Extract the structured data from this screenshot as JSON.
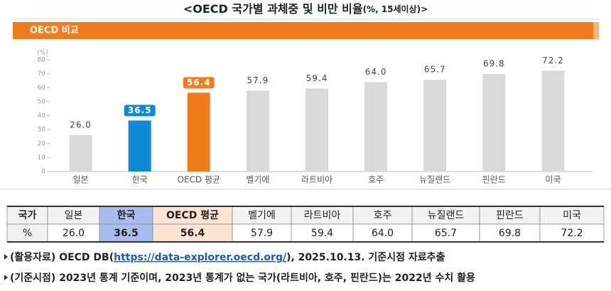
{
  "chart_data": {
    "type": "bar",
    "title": "<OECD 국가별 과체중 및 비만 비율",
    "title_note": "(%, 15세이상)>",
    "panel_title": "OECD 비교",
    "y_unit": "(%)",
    "categories": [
      "일본",
      "한국",
      "OECD 평균",
      "벨기에",
      "라트비아",
      "호주",
      "뉴질랜드",
      "핀란드",
      "미국"
    ],
    "values": [
      26.0,
      36.5,
      56.4,
      57.9,
      59.4,
      64.0,
      65.7,
      69.8,
      72.2
    ],
    "value_labels": [
      "26.0",
      "36.5",
      "56.4",
      "57.9",
      "59.4",
      "64.0",
      "65.7",
      "69.8",
      "72.2"
    ],
    "default_color": "#d9d9d9",
    "colors": [
      "#d9d9d9",
      "#0f8ad4",
      "#f07c1b",
      "#d9d9d9",
      "#d9d9d9",
      "#d9d9d9",
      "#d9d9d9",
      "#d9d9d9",
      "#d9d9d9"
    ],
    "ylim": [
      0,
      80
    ],
    "yticks": [
      0,
      10,
      20,
      30,
      40,
      50,
      60,
      70,
      80
    ],
    "grid": false
  },
  "table": {
    "header": [
      "국가",
      "일본",
      "한국",
      "OECD 평균",
      "벨기에",
      "라트비아",
      "호주",
      "뉴질랜드",
      "핀란드",
      "미국"
    ],
    "row": [
      "%",
      "26.0",
      "36.5",
      "56.4",
      "57.9",
      "59.4",
      "64.0",
      "65.7",
      "69.8",
      "72.2"
    ]
  },
  "notes": [
    {
      "prefix": "(활용자료) OECD DB(",
      "link": "https://data-explorer.oecd.org/",
      "suffix": "), 2025.10.13. 기준시점 자료추출"
    },
    {
      "text": "(기준시점) 2023년 통계 기준이며, 2023년 통계가 없는 국가(라트비아, 호주, 핀란드)는 2022년 수치 활용"
    }
  ]
}
